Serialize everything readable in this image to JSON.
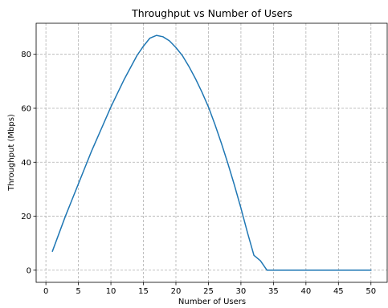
{
  "chart_data": {
    "type": "line",
    "title": "Throughput vs Number of Users",
    "xlabel": "Number of Users",
    "ylabel": "Throughput (Mbps)",
    "xlim": [
      -1.5,
      52.5
    ],
    "ylim": [
      -4.5,
      91.5
    ],
    "xticks": [
      0,
      5,
      10,
      15,
      20,
      25,
      30,
      35,
      40,
      45,
      50
    ],
    "yticks": [
      0,
      20,
      40,
      60,
      80
    ],
    "grid": true,
    "grid_style": "dashed",
    "series": [
      {
        "color": "#1f77b4",
        "x": [
          1,
          2,
          3,
          4,
          5,
          6,
          7,
          8,
          9,
          10,
          11,
          12,
          13,
          14,
          15,
          16,
          17,
          18,
          19,
          20,
          21,
          22,
          23,
          24,
          25,
          26,
          27,
          28,
          29,
          30,
          31,
          32,
          33,
          34,
          35,
          36,
          37,
          38,
          39,
          40,
          41,
          42,
          43,
          44,
          45,
          46,
          47,
          48,
          49,
          50
        ],
        "y": [
          7,
          13.5,
          20,
          26,
          32,
          38,
          44,
          49.5,
          55,
          60.5,
          65.5,
          70.5,
          75,
          79.5,
          83,
          86,
          87,
          86.5,
          85,
          82.5,
          79.5,
          75.5,
          71,
          66,
          60.5,
          54,
          47,
          39.5,
          31.5,
          23,
          14,
          5.5,
          3.5,
          0,
          0,
          0,
          0,
          0,
          0,
          0,
          0,
          0,
          0,
          0,
          0,
          0,
          0,
          0,
          0,
          0
        ]
      }
    ]
  }
}
